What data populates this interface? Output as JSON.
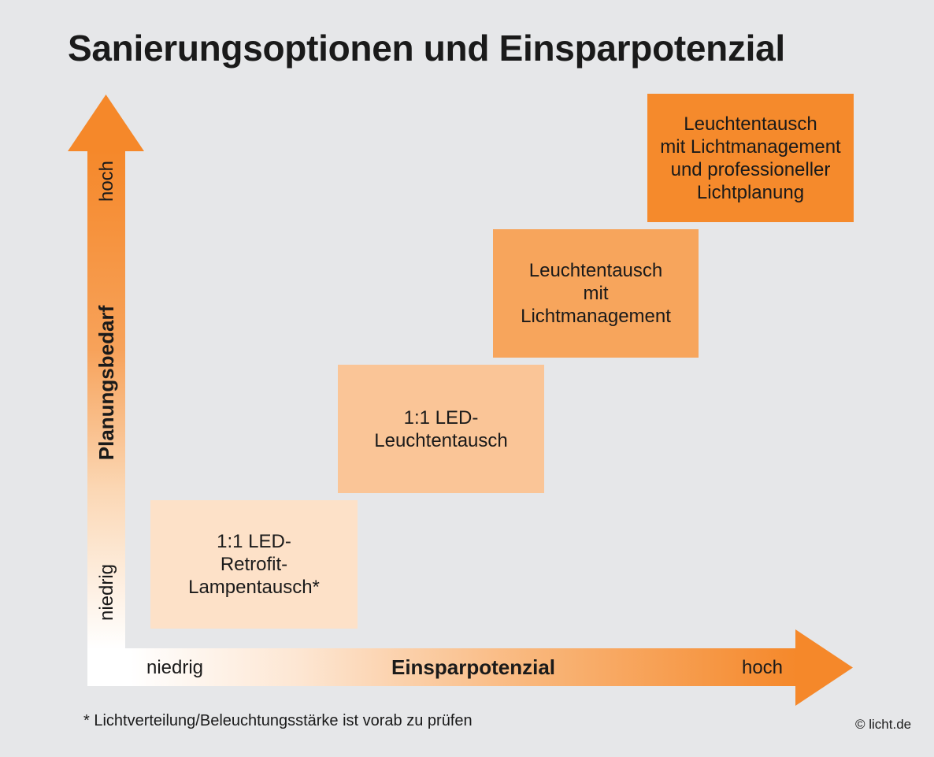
{
  "title": "Sanierungsoptionen und Einsparpotenzial",
  "y_axis": {
    "label": "Planungsbedarf",
    "low": "niedrig",
    "high": "hoch"
  },
  "x_axis": {
    "label": "Einsparpotenzial",
    "low": "niedrig",
    "high": "hoch"
  },
  "options": [
    {
      "text": "1:1 LED-\nRetrofit-\nLampentausch*",
      "color": "#fde1c8"
    },
    {
      "text": "1:1 LED-\nLeuchtentausch",
      "color": "#fac597"
    },
    {
      "text": "Leuchtentausch\nmit\nLichtmanagement",
      "color": "#f7a55c"
    },
    {
      "text": "Leuchtentausch\nmit Lichtmanagement\nund professioneller\nLichtplanung",
      "color": "#f58a2c"
    }
  ],
  "accent_color": "#f5882a",
  "footnote": "* Lichtverteilung/Beleuchtungsstärke ist vorab zu prüfen",
  "copyright": "© licht.de"
}
